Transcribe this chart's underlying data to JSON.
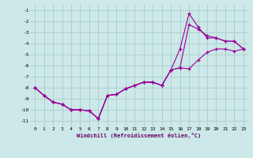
{
  "xlabel": "Windchill (Refroidissement éolien,°C)",
  "bg_color": "#cce8e8",
  "grid_color": "#aacccc",
  "line_color": "#990099",
  "xlim": [
    -0.5,
    23.5
  ],
  "ylim": [
    -11.5,
    -0.5
  ],
  "xticks": [
    0,
    1,
    2,
    3,
    4,
    5,
    6,
    7,
    8,
    9,
    10,
    11,
    12,
    13,
    14,
    15,
    16,
    17,
    18,
    19,
    20,
    21,
    22,
    23
  ],
  "yticks": [
    -1,
    -2,
    -3,
    -4,
    -5,
    -6,
    -7,
    -8,
    -9,
    -10,
    -11
  ],
  "series1": [
    [
      0,
      -8.0
    ],
    [
      1,
      -8.7
    ],
    [
      2,
      -9.3
    ],
    [
      3,
      -9.5
    ],
    [
      4,
      -10.0
    ],
    [
      5,
      -10.0
    ],
    [
      6,
      -10.1
    ],
    [
      7,
      -10.8
    ],
    [
      8,
      -8.7
    ],
    [
      9,
      -8.6
    ],
    [
      10,
      -8.1
    ],
    [
      11,
      -7.8
    ],
    [
      12,
      -7.5
    ],
    [
      13,
      -7.5
    ],
    [
      14,
      -7.8
    ],
    [
      15,
      -6.4
    ],
    [
      16,
      -4.5
    ],
    [
      17,
      -1.3
    ],
    [
      18,
      -2.5
    ],
    [
      19,
      -3.5
    ],
    [
      20,
      -3.5
    ],
    [
      21,
      -3.8
    ],
    [
      22,
      -3.8
    ],
    [
      23,
      -4.5
    ]
  ],
  "series2": [
    [
      0,
      -8.0
    ],
    [
      1,
      -8.7
    ],
    [
      2,
      -9.3
    ],
    [
      3,
      -9.5
    ],
    [
      4,
      -10.0
    ],
    [
      5,
      -10.0
    ],
    [
      6,
      -10.1
    ],
    [
      7,
      -10.8
    ],
    [
      8,
      -8.7
    ],
    [
      9,
      -8.6
    ],
    [
      10,
      -8.1
    ],
    [
      11,
      -7.8
    ],
    [
      12,
      -7.5
    ],
    [
      13,
      -7.5
    ],
    [
      14,
      -7.8
    ],
    [
      15,
      -6.4
    ],
    [
      16,
      -6.2
    ],
    [
      17,
      -6.3
    ],
    [
      18,
      -5.5
    ],
    [
      19,
      -4.8
    ],
    [
      20,
      -4.5
    ],
    [
      21,
      -4.5
    ],
    [
      22,
      -4.7
    ],
    [
      23,
      -4.5
    ]
  ],
  "series3": [
    [
      0,
      -8.0
    ],
    [
      1,
      -8.7
    ],
    [
      2,
      -9.3
    ],
    [
      3,
      -9.5
    ],
    [
      4,
      -10.0
    ],
    [
      5,
      -10.0
    ],
    [
      6,
      -10.1
    ],
    [
      7,
      -10.8
    ],
    [
      8,
      -8.7
    ],
    [
      9,
      -8.6
    ],
    [
      10,
      -8.1
    ],
    [
      11,
      -7.8
    ],
    [
      12,
      -7.5
    ],
    [
      13,
      -7.5
    ],
    [
      14,
      -7.8
    ],
    [
      15,
      -6.4
    ],
    [
      16,
      -6.2
    ],
    [
      17,
      -2.3
    ],
    [
      18,
      -2.7
    ],
    [
      19,
      -3.3
    ],
    [
      20,
      -3.5
    ],
    [
      21,
      -3.8
    ],
    [
      22,
      -3.8
    ],
    [
      23,
      -4.5
    ]
  ]
}
